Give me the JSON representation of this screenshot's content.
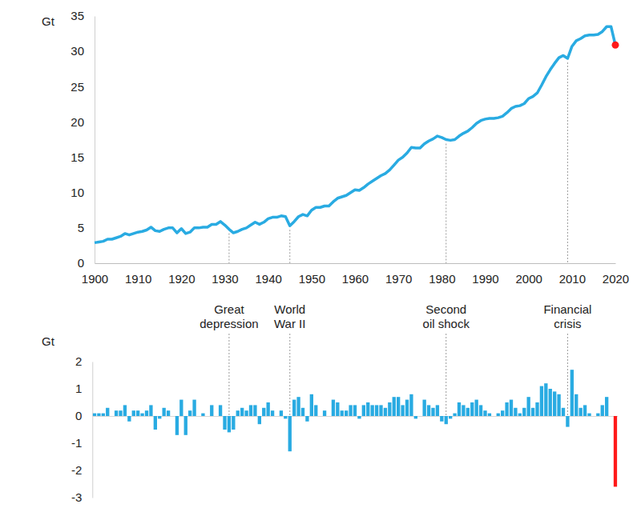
{
  "chart_data": [
    {
      "type": "line",
      "y_label": "Gt",
      "x": [
        1900,
        1901,
        1902,
        1903,
        1904,
        1905,
        1906,
        1907,
        1908,
        1909,
        1910,
        1911,
        1912,
        1913,
        1914,
        1915,
        1916,
        1917,
        1918,
        1919,
        1920,
        1921,
        1922,
        1923,
        1924,
        1925,
        1926,
        1927,
        1928,
        1929,
        1930,
        1931,
        1932,
        1933,
        1934,
        1935,
        1936,
        1937,
        1938,
        1939,
        1940,
        1941,
        1942,
        1943,
        1944,
        1945,
        1946,
        1947,
        1948,
        1949,
        1950,
        1951,
        1952,
        1953,
        1954,
        1955,
        1956,
        1957,
        1958,
        1959,
        1960,
        1961,
        1962,
        1963,
        1964,
        1965,
        1966,
        1967,
        1968,
        1969,
        1970,
        1971,
        1972,
        1973,
        1974,
        1975,
        1976,
        1977,
        1978,
        1979,
        1980,
        1981,
        1982,
        1983,
        1984,
        1985,
        1986,
        1987,
        1988,
        1989,
        1990,
        1991,
        1992,
        1993,
        1994,
        1995,
        1996,
        1997,
        1998,
        1999,
        2000,
        2001,
        2002,
        2003,
        2004,
        2005,
        2006,
        2007,
        2008,
        2009,
        2010,
        2011,
        2012,
        2013,
        2014,
        2015,
        2016,
        2017,
        2018,
        2019,
        2020
      ],
      "series": [
        {
          "type": "line",
          "color": "#29abe2",
          "line_style": "solid",
          "values": [
            2.9,
            3.0,
            3.1,
            3.4,
            3.4,
            3.6,
            3.8,
            4.2,
            4.0,
            4.2,
            4.4,
            4.5,
            4.7,
            5.1,
            4.6,
            4.5,
            4.8,
            5.0,
            5.0,
            4.3,
            4.9,
            4.2,
            4.4,
            5.0,
            5.0,
            5.1,
            5.1,
            5.5,
            5.5,
            5.9,
            5.4,
            4.8,
            4.3,
            4.5,
            4.8,
            5.0,
            5.4,
            5.8,
            5.5,
            5.8,
            6.3,
            6.5,
            6.5,
            6.7,
            6.6,
            5.3,
            5.9,
            6.6,
            6.9,
            6.7,
            7.5,
            7.9,
            7.9,
            8.1,
            8.1,
            8.7,
            9.2,
            9.4,
            9.6,
            10.0,
            10.4,
            10.3,
            10.7,
            11.2,
            11.6,
            12.0,
            12.4,
            12.7,
            13.2,
            13.9,
            14.6,
            15.0,
            15.6,
            16.4,
            16.3,
            16.3,
            16.9,
            17.3,
            17.6,
            18.0,
            17.8,
            17.5,
            17.4,
            17.5,
            18.0,
            18.4,
            18.7,
            19.2,
            19.8,
            20.2,
            20.4,
            20.5,
            20.5,
            20.6,
            20.8,
            21.3,
            21.9,
            22.2,
            22.3,
            22.6,
            23.3,
            23.6,
            24.1,
            25.2,
            26.4,
            27.4,
            28.3,
            29.1,
            29.4,
            29.0,
            30.7,
            31.5,
            31.8,
            32.2,
            32.3,
            32.3,
            32.4,
            32.8,
            33.5,
            33.5,
            30.9
          ]
        },
        {
          "type": "scatter",
          "color": "#ff1a1a",
          "marker": "circle",
          "values": [
            null,
            null,
            null,
            null,
            null,
            null,
            null,
            null,
            null,
            null,
            null,
            null,
            null,
            null,
            null,
            null,
            null,
            null,
            null,
            null,
            null,
            null,
            null,
            null,
            null,
            null,
            null,
            null,
            null,
            null,
            null,
            null,
            null,
            null,
            null,
            null,
            null,
            null,
            null,
            null,
            null,
            null,
            null,
            null,
            null,
            null,
            null,
            null,
            null,
            null,
            null,
            null,
            null,
            null,
            null,
            null,
            null,
            null,
            null,
            null,
            null,
            null,
            null,
            null,
            null,
            null,
            null,
            null,
            null,
            null,
            null,
            null,
            null,
            null,
            null,
            null,
            null,
            null,
            null,
            null,
            null,
            null,
            null,
            null,
            null,
            null,
            null,
            null,
            null,
            null,
            null,
            null,
            null,
            null,
            null,
            null,
            null,
            null,
            null,
            null,
            null,
            null,
            null,
            null,
            null,
            null,
            null,
            null,
            null,
            null,
            null,
            null,
            null,
            null,
            null,
            null,
            null,
            null,
            null,
            null,
            30.9
          ]
        }
      ],
      "xlim": [
        1900,
        2020
      ],
      "xticks": [
        1900,
        1910,
        1920,
        1930,
        1940,
        1950,
        1960,
        1970,
        1980,
        1990,
        2000,
        2010,
        2020
      ],
      "ylim": [
        0,
        35
      ],
      "yticks": [
        0,
        5,
        10,
        15,
        20,
        25,
        30,
        35
      ]
    },
    {
      "type": "bar",
      "y_label": "Gt",
      "stacked": true,
      "tick_labels": "y",
      "x": [
        1900,
        1901,
        1902,
        1903,
        1904,
        1905,
        1906,
        1907,
        1908,
        1909,
        1910,
        1911,
        1912,
        1913,
        1914,
        1915,
        1916,
        1917,
        1918,
        1919,
        1920,
        1921,
        1922,
        1923,
        1924,
        1925,
        1926,
        1927,
        1928,
        1929,
        1930,
        1931,
        1932,
        1933,
        1934,
        1935,
        1936,
        1937,
        1938,
        1939,
        1940,
        1941,
        1942,
        1943,
        1944,
        1945,
        1946,
        1947,
        1948,
        1949,
        1950,
        1951,
        1952,
        1953,
        1954,
        1955,
        1956,
        1957,
        1958,
        1959,
        1960,
        1961,
        1962,
        1963,
        1964,
        1965,
        1966,
        1967,
        1968,
        1969,
        1970,
        1971,
        1972,
        1973,
        1974,
        1975,
        1976,
        1977,
        1978,
        1979,
        1980,
        1981,
        1982,
        1983,
        1984,
        1985,
        1986,
        1987,
        1988,
        1989,
        1990,
        1991,
        1992,
        1993,
        1994,
        1995,
        1996,
        1997,
        1998,
        1999,
        2000,
        2001,
        2002,
        2003,
        2004,
        2005,
        2006,
        2007,
        2008,
        2009,
        2010,
        2011,
        2012,
        2013,
        2014,
        2015,
        2016,
        2017,
        2018,
        2019,
        2020
      ],
      "series": [
        {
          "color": "#29abe2",
          "values": [
            0.1,
            0.1,
            0.1,
            0.3,
            0.0,
            0.2,
            0.2,
            0.4,
            -0.2,
            0.2,
            0.2,
            0.1,
            0.2,
            0.4,
            -0.5,
            -0.1,
            0.3,
            0.2,
            0.0,
            -0.7,
            0.6,
            -0.7,
            0.2,
            0.6,
            0.0,
            0.1,
            0.0,
            0.4,
            0.0,
            0.4,
            -0.5,
            -0.6,
            -0.5,
            0.2,
            0.3,
            0.2,
            0.4,
            0.4,
            -0.3,
            0.3,
            0.5,
            0.2,
            0.0,
            0.2,
            -0.1,
            -1.3,
            0.6,
            0.7,
            0.3,
            -0.2,
            0.8,
            0.4,
            0.0,
            0.2,
            0.0,
            0.6,
            0.5,
            0.2,
            0.2,
            0.4,
            0.4,
            -0.1,
            0.4,
            0.5,
            0.4,
            0.4,
            0.4,
            0.3,
            0.5,
            0.7,
            0.7,
            0.4,
            0.6,
            0.8,
            -0.1,
            0.0,
            0.6,
            0.4,
            0.3,
            0.4,
            -0.2,
            -0.3,
            -0.1,
            0.1,
            0.5,
            0.4,
            0.3,
            0.5,
            0.6,
            0.4,
            0.2,
            0.1,
            0.0,
            0.1,
            0.2,
            0.5,
            0.6,
            0.3,
            0.1,
            0.3,
            0.7,
            0.3,
            0.5,
            1.1,
            1.2,
            1.0,
            0.9,
            0.8,
            0.3,
            -0.4,
            1.7,
            0.8,
            0.3,
            0.4,
            0.1,
            0.0,
            0.1,
            0.4,
            0.7,
            0.0,
            null
          ]
        },
        {
          "color": "#ff1a1a",
          "values": [
            null,
            null,
            null,
            null,
            null,
            null,
            null,
            null,
            null,
            null,
            null,
            null,
            null,
            null,
            null,
            null,
            null,
            null,
            null,
            null,
            null,
            null,
            null,
            null,
            null,
            null,
            null,
            null,
            null,
            null,
            null,
            null,
            null,
            null,
            null,
            null,
            null,
            null,
            null,
            null,
            null,
            null,
            null,
            null,
            null,
            null,
            null,
            null,
            null,
            null,
            null,
            null,
            null,
            null,
            null,
            null,
            null,
            null,
            null,
            null,
            null,
            null,
            null,
            null,
            null,
            null,
            null,
            null,
            null,
            null,
            null,
            null,
            null,
            null,
            null,
            null,
            null,
            null,
            null,
            null,
            null,
            null,
            null,
            null,
            null,
            null,
            null,
            null,
            null,
            null,
            null,
            null,
            null,
            null,
            null,
            null,
            null,
            null,
            null,
            null,
            null,
            null,
            null,
            null,
            null,
            null,
            null,
            null,
            null,
            null,
            null,
            null,
            null,
            null,
            null,
            null,
            null,
            null,
            null,
            null,
            -2.6
          ]
        }
      ],
      "xlim": [
        1899.5,
        2020.5
      ],
      "ylim": [
        -3,
        2
      ],
      "yticks": [
        -3,
        -2,
        -1,
        0,
        1,
        2
      ],
      "annotations": [
        {
          "x": 1931,
          "text": "Great depression"
        },
        {
          "x": 1945,
          "text": "World War II"
        },
        {
          "x": 1981,
          "text": "Second oil shock"
        },
        {
          "x": 2009,
          "text": "Financial crisis"
        }
      ]
    }
  ]
}
